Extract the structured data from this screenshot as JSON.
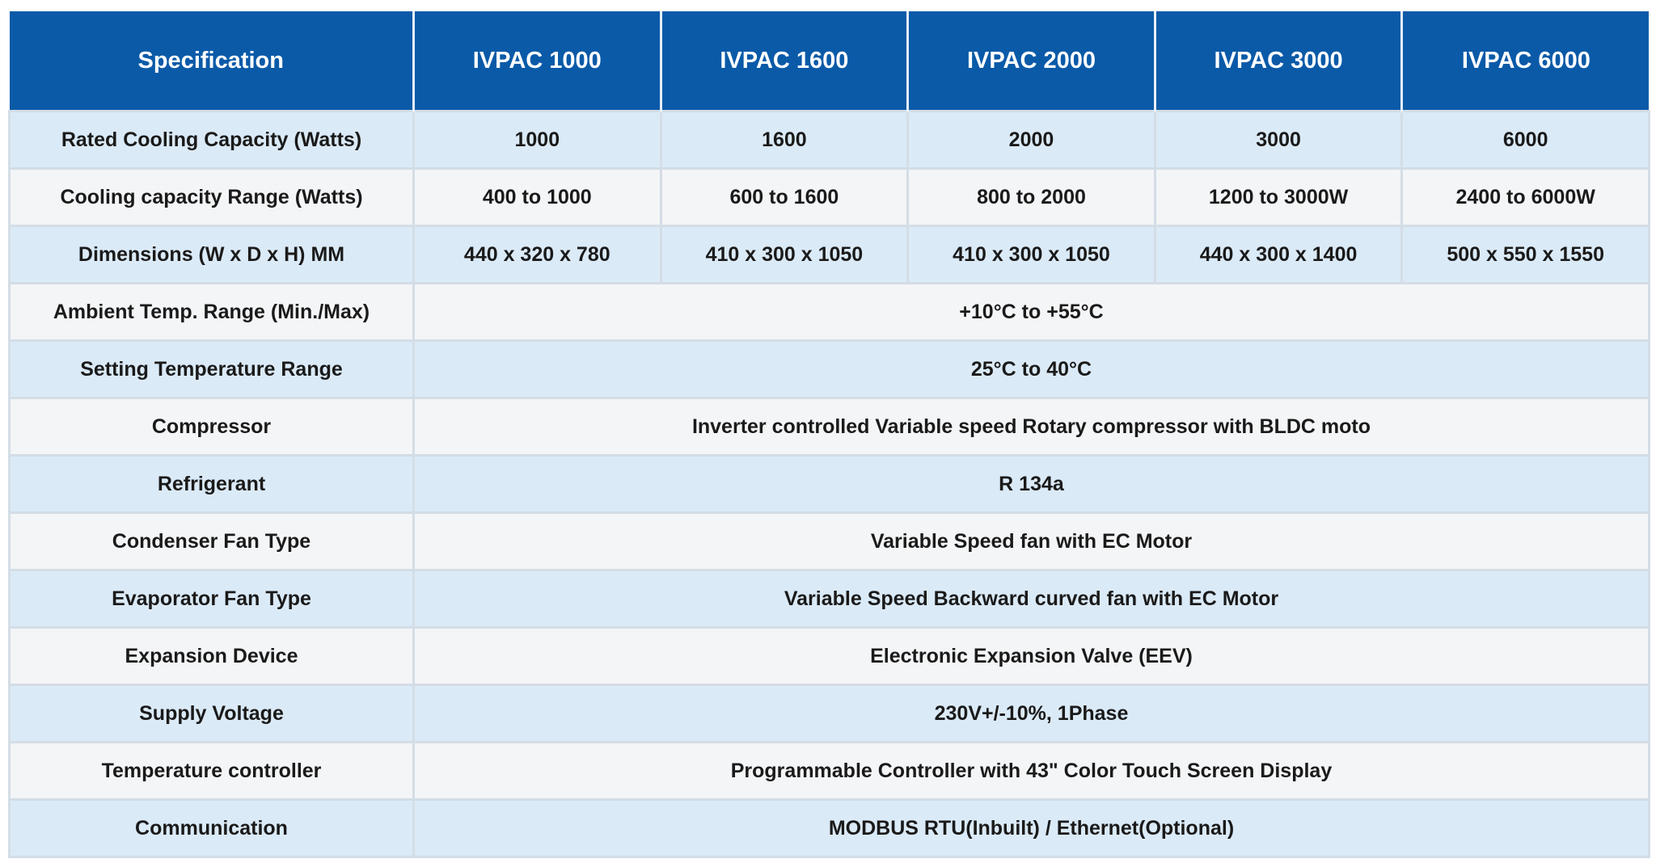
{
  "table": {
    "headers": [
      "Specification",
      "IVPAC 1000",
      "IVPAC 1600",
      "IVPAC 2000",
      "IVPAC 3000",
      "IVPAC 6000"
    ],
    "rows_per_model": [
      {
        "label": "Rated Cooling Capacity (Watts)",
        "values": [
          "1000",
          "1600",
          "2000",
          "3000",
          "6000"
        ]
      },
      {
        "label": "Cooling capacity Range (Watts)",
        "values": [
          "400 to 1000",
          "600 to 1600",
          "800 to 2000",
          "1200 to 3000W",
          "2400 to 6000W"
        ]
      },
      {
        "label": "Dimensions (W x D x H) MM",
        "values": [
          "440 x 320 x 780",
          "410 x 300 x 1050",
          "410 x 300 x 1050",
          "440 x 300 x 1400",
          "500 x 550 x 1550"
        ]
      }
    ],
    "rows_common": [
      {
        "label": "Ambient Temp. Range (Min./Max)",
        "value": "+10°C to +55°C"
      },
      {
        "label": "Setting Temperature Range",
        "value": "25°C to 40°C"
      },
      {
        "label": "Compressor",
        "value": "Inverter controlled Variable speed Rotary compressor with BLDC moto"
      },
      {
        "label": "Refrigerant",
        "value": "R 134a"
      },
      {
        "label": "Condenser Fan Type",
        "value": "Variable Speed fan with EC Motor"
      },
      {
        "label": "Evaporator Fan Type",
        "value": "Variable Speed Backward curved fan with EC Motor"
      },
      {
        "label": "Expansion Device",
        "value": "Electronic Expansion Valve (EEV)"
      },
      {
        "label": "Supply Voltage",
        "value": "230V+/-10%, 1Phase"
      },
      {
        "label": "Temperature controller",
        "value": "Programmable Controller with 43\" Color Touch Screen Display"
      },
      {
        "label": "Communication",
        "value": "MODBUS RTU(Inbuilt) / Ethernet(Optional)"
      }
    ],
    "colors": {
      "header_bg": "#0a5aa8",
      "header_text": "#ffffff",
      "row_blue": "#dbeaf7",
      "row_gray": "#f4f5f7",
      "border": "#d4dde6"
    }
  }
}
